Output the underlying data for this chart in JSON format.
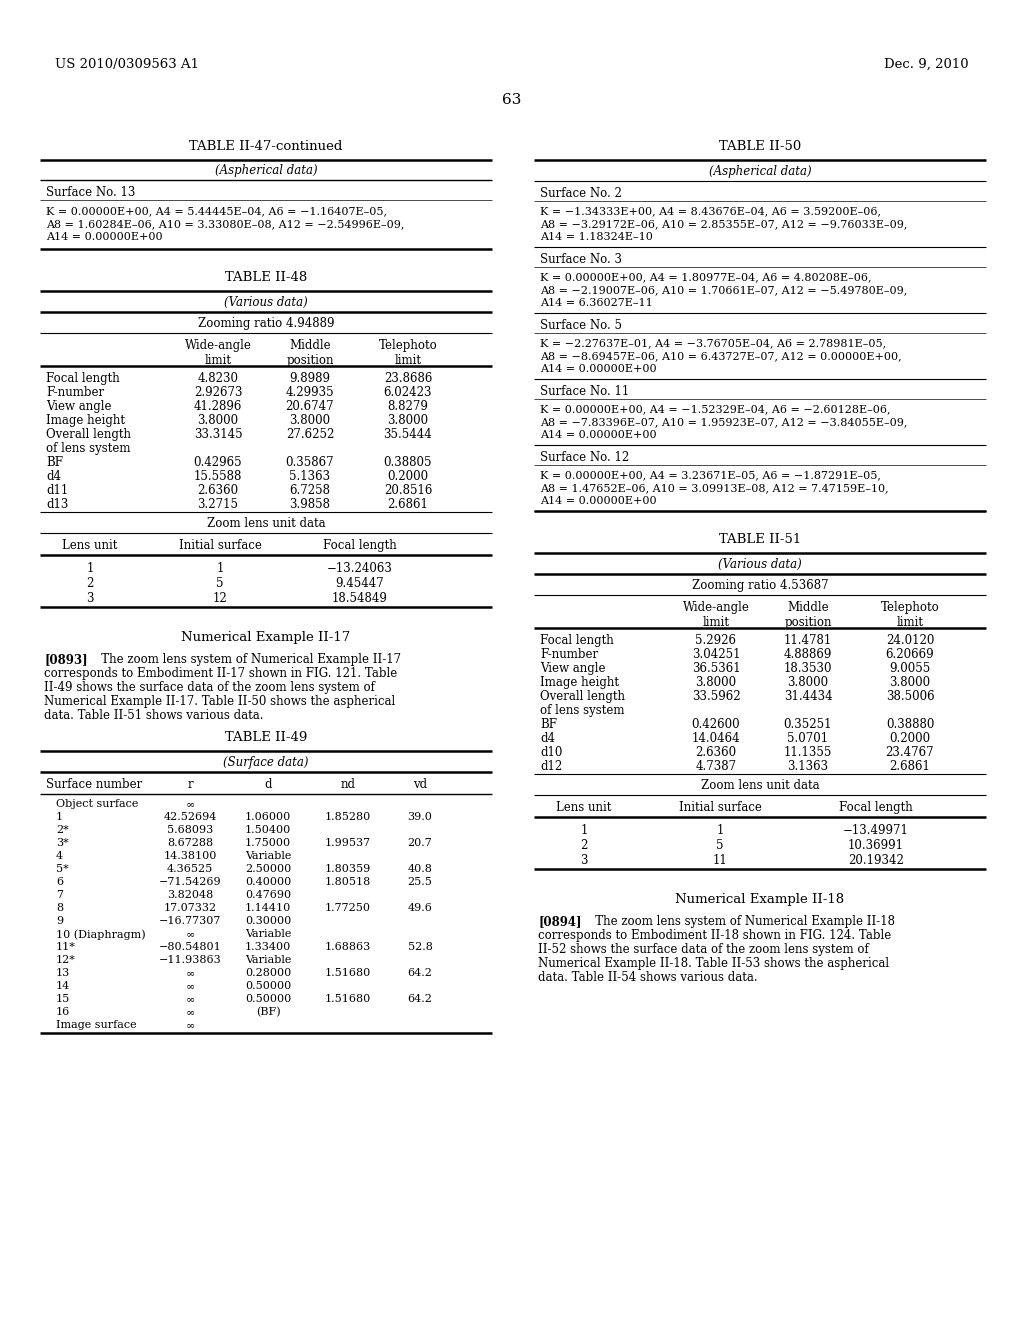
{
  "page_header_left": "US 2010/0309563 A1",
  "page_header_right": "Dec. 9, 2010",
  "page_number": "63",
  "bg_color": "#ffffff",
  "text_color": "#000000",
  "left_col": {
    "table47cont": {
      "title": "TABLE II-47-continued",
      "subtitle": "(Aspherical data)",
      "surface13_label": "Surface No. 13",
      "surface13_data_lines": [
        "K = 0.00000E+00, A4 = 5.44445E–04, A6 = −1.16407E–05,",
        "A8 = 1.60284E–06, A10 = 3.33080E–08, A12 = −2.54996E–09,",
        "A14 = 0.00000E+00"
      ]
    },
    "table48": {
      "title": "TABLE II-48",
      "subtitle": "(Various data)",
      "zooming_ratio": "Zooming ratio 4.94889",
      "rows": [
        [
          "Focal length",
          "4.8230",
          "9.8989",
          "23.8686"
        ],
        [
          "F-number",
          "2.92673",
          "4.29935",
          "6.02423"
        ],
        [
          "View angle",
          "41.2896",
          "20.6747",
          "8.8279"
        ],
        [
          "Image height",
          "3.8000",
          "3.8000",
          "3.8000"
        ],
        [
          "Overall length",
          "33.3145",
          "27.6252",
          "35.5444"
        ],
        [
          "of lens system",
          "",
          "",
          ""
        ],
        [
          "BF",
          "0.42965",
          "0.35867",
          "0.38805"
        ],
        [
          "d4",
          "15.5588",
          "5.1363",
          "0.2000"
        ],
        [
          "d11",
          "2.6360",
          "6.7258",
          "20.8516"
        ],
        [
          "d13",
          "3.2715",
          "3.9858",
          "2.6861"
        ]
      ],
      "zoom_rows": [
        [
          "1",
          "1",
          "−13.24063"
        ],
        [
          "2",
          "5",
          "9.45447"
        ],
        [
          "3",
          "12",
          "18.54849"
        ]
      ]
    },
    "num17_title": "Numerical Example II-17",
    "num17_para_lines": [
      "[0893]    The zoom lens system of Numerical Example II-17",
      "corresponds to Embodiment II-17 shown in FIG. 121. Table",
      "II-49 shows the surface data of the zoom lens system of",
      "Numerical Example II-17. Table II-50 shows the aspherical",
      "data. Table II-51 shows various data."
    ],
    "num17_bold_word": "121",
    "table49": {
      "title": "TABLE II-49",
      "subtitle": "(Surface data)",
      "rows": [
        [
          "Object surface",
          "∞",
          "",
          "",
          ""
        ],
        [
          "1",
          "42.52694",
          "1.06000",
          "1.85280",
          "39.0"
        ],
        [
          "2*",
          "5.68093",
          "1.50400",
          "",
          ""
        ],
        [
          "3*",
          "8.67288",
          "1.75000",
          "1.99537",
          "20.7"
        ],
        [
          "4",
          "14.38100",
          "Variable",
          "",
          ""
        ],
        [
          "5*",
          "4.36525",
          "2.50000",
          "1.80359",
          "40.8"
        ],
        [
          "6",
          "−71.54269",
          "0.40000",
          "1.80518",
          "25.5"
        ],
        [
          "7",
          "3.82048",
          "0.47690",
          "",
          ""
        ],
        [
          "8",
          "17.07332",
          "1.14410",
          "1.77250",
          "49.6"
        ],
        [
          "9",
          "−16.77307",
          "0.30000",
          "",
          ""
        ],
        [
          "10 (Diaphragm)",
          "∞",
          "Variable",
          "",
          ""
        ],
        [
          "11*",
          "−80.54801",
          "1.33400",
          "1.68863",
          "52.8"
        ],
        [
          "12*",
          "−11.93863",
          "Variable",
          "",
          ""
        ],
        [
          "13",
          "∞",
          "0.28000",
          "1.51680",
          "64.2"
        ],
        [
          "14",
          "∞",
          "0.50000",
          "",
          ""
        ],
        [
          "15",
          "∞",
          "0.50000",
          "1.51680",
          "64.2"
        ],
        [
          "16",
          "∞",
          "(BF)",
          "",
          ""
        ],
        [
          "Image surface",
          "∞",
          "",
          "",
          ""
        ]
      ]
    }
  },
  "right_col": {
    "table50": {
      "title": "TABLE II-50",
      "subtitle": "(Aspherical data)",
      "sections": [
        {
          "label": "Surface No. 2",
          "lines": [
            "K = −1.34333E+00, A4 = 8.43676E–04, A6 = 3.59200E–06,",
            "A8 = −3.29172E–06, A10 = 2.85355E–07, A12 = −9.76033E–09,",
            "A14 = 1.18324E–10"
          ]
        },
        {
          "label": "Surface No. 3",
          "lines": [
            "K = 0.00000E+00, A4 = 1.80977E–04, A6 = 4.80208E–06,",
            "A8 = −2.19007E–06, A10 = 1.70661E–07, A12 = −5.49780E–09,",
            "A14 = 6.36027E–11"
          ]
        },
        {
          "label": "Surface No. 5",
          "lines": [
            "K = −2.27637E–01, A4 = −3.76705E–04, A6 = 2.78981E–05,",
            "A8 = −8.69457E–06, A10 = 6.43727E–07, A12 = 0.00000E+00,",
            "A14 = 0.00000E+00"
          ]
        },
        {
          "label": "Surface No. 11",
          "lines": [
            "K = 0.00000E+00, A4 = −1.52329E–04, A6 = −2.60128E–06,",
            "A8 = −7.83396E–07, A10 = 1.95923E–07, A12 = −3.84055E–09,",
            "A14 = 0.00000E+00"
          ]
        },
        {
          "label": "Surface No. 12",
          "lines": [
            "K = 0.00000E+00, A4 = 3.23671E–05, A6 = −1.87291E–05,",
            "A8 = 1.47652E–06, A10 = 3.09913E–08, A12 = 7.47159E–10,",
            "A14 = 0.00000E+00"
          ]
        }
      ]
    },
    "table51": {
      "title": "TABLE II-51",
      "subtitle": "(Various data)",
      "zooming_ratio": "Zooming ratio 4.53687",
      "rows": [
        [
          "Focal length",
          "5.2926",
          "11.4781",
          "24.0120"
        ],
        [
          "F-number",
          "3.04251",
          "4.88869",
          "6.20669"
        ],
        [
          "View angle",
          "36.5361",
          "18.3530",
          "9.0055"
        ],
        [
          "Image height",
          "3.8000",
          "3.8000",
          "3.8000"
        ],
        [
          "Overall length",
          "33.5962",
          "31.4434",
          "38.5006"
        ],
        [
          "of lens system",
          "",
          "",
          ""
        ],
        [
          "BF",
          "0.42600",
          "0.35251",
          "0.38880"
        ],
        [
          "d4",
          "14.0464",
          "5.0701",
          "0.2000"
        ],
        [
          "d10",
          "2.6360",
          "11.1355",
          "23.4767"
        ],
        [
          "d12",
          "4.7387",
          "3.1363",
          "2.6861"
        ]
      ],
      "zoom_rows": [
        [
          "1",
          "1",
          "−13.49971"
        ],
        [
          "2",
          "5",
          "10.36991"
        ],
        [
          "3",
          "11",
          "20.19342"
        ]
      ]
    },
    "num18_title": "Numerical Example II-18",
    "num18_para_lines": [
      "[0894]    The zoom lens system of Numerical Example II-18",
      "corresponds to Embodiment II-18 shown in FIG. 124. Table",
      "II-52 shows the surface data of the zoom lens system of",
      "Numerical Example II-18. Table II-53 shows the aspherical",
      "data. Table II-54 shows various data."
    ],
    "num18_bold_word": "124"
  }
}
